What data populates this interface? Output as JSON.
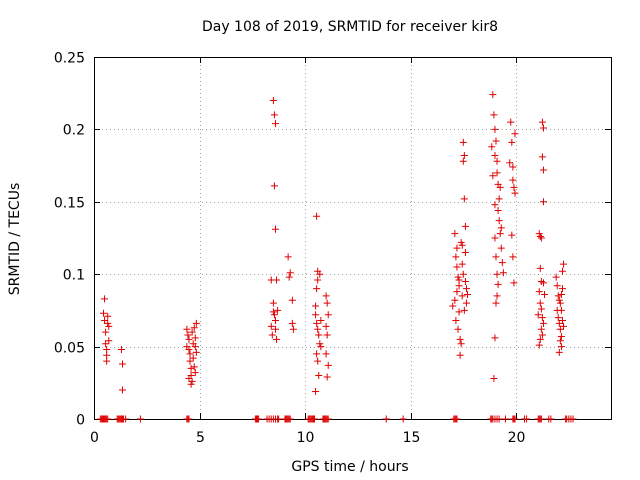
{
  "chart_data": {
    "type": "scatter",
    "title": "Day 108 of 2019, SRMTID for receiver kir8",
    "xlabel": "GPS time / hours",
    "ylabel": "SRMTID / TECUs",
    "xlim": [
      0,
      24.5
    ],
    "ylim": [
      0,
      0.25
    ],
    "xticks": [
      0,
      5,
      10,
      15,
      20
    ],
    "xtick_labels": [
      "0",
      "5",
      "10",
      "15",
      "20"
    ],
    "yticks": [
      0,
      0.05,
      0.1,
      0.15,
      0.2,
      0.25
    ],
    "ytick_labels": [
      "0",
      "0.05",
      "0.1",
      "0.15",
      "0.2",
      "0.25"
    ],
    "grid": true,
    "marker": "+",
    "color": "#e00000",
    "series": [
      {
        "name": "SRMTID",
        "points": [
          [
            0.5,
            0.083
          ],
          [
            0.5,
            0.068
          ],
          [
            0.55,
            0.06
          ],
          [
            0.55,
            0.052
          ],
          [
            0.6,
            0.048
          ],
          [
            0.6,
            0.044
          ],
          [
            0.65,
            0.071
          ],
          [
            0.65,
            0.066
          ],
          [
            0.7,
            0.064
          ],
          [
            0.7,
            0.054
          ],
          [
            0.45,
            0.073
          ],
          [
            0.6,
            0.04
          ],
          [
            1.3,
            0.048
          ],
          [
            1.35,
            0.038
          ],
          [
            1.35,
            0.02
          ],
          [
            4.4,
            0.062
          ],
          [
            4.45,
            0.058
          ],
          [
            4.5,
            0.055
          ],
          [
            4.5,
            0.048
          ],
          [
            4.55,
            0.045
          ],
          [
            4.55,
            0.04
          ],
          [
            4.6,
            0.035
          ],
          [
            4.6,
            0.03
          ],
          [
            4.65,
            0.026
          ],
          [
            4.65,
            0.06
          ],
          [
            4.7,
            0.052
          ],
          [
            4.7,
            0.042
          ],
          [
            4.75,
            0.063
          ],
          [
            4.75,
            0.036
          ],
          [
            4.8,
            0.056
          ],
          [
            4.8,
            0.05
          ],
          [
            4.85,
            0.066
          ],
          [
            4.85,
            0.046
          ],
          [
            4.5,
            0.028
          ],
          [
            4.6,
            0.024
          ],
          [
            4.8,
            0.032
          ],
          [
            4.4,
            0.05
          ],
          [
            8.5,
            0.22
          ],
          [
            8.55,
            0.21
          ],
          [
            8.6,
            0.204
          ],
          [
            8.55,
            0.161
          ],
          [
            8.6,
            0.131
          ],
          [
            8.4,
            0.096
          ],
          [
            8.5,
            0.08
          ],
          [
            8.5,
            0.074
          ],
          [
            8.55,
            0.072
          ],
          [
            8.6,
            0.068
          ],
          [
            8.6,
            0.062
          ],
          [
            8.65,
            0.055
          ],
          [
            8.4,
            0.064
          ],
          [
            8.45,
            0.058
          ],
          [
            8.65,
            0.096
          ],
          [
            8.7,
            0.075
          ],
          [
            9.2,
            0.112
          ],
          [
            9.25,
            0.098
          ],
          [
            9.3,
            0.101
          ],
          [
            9.4,
            0.082
          ],
          [
            9.4,
            0.066
          ],
          [
            9.45,
            0.062
          ],
          [
            10.55,
            0.14
          ],
          [
            10.6,
            0.102
          ],
          [
            10.6,
            0.096
          ],
          [
            10.55,
            0.09
          ],
          [
            10.5,
            0.078
          ],
          [
            10.5,
            0.072
          ],
          [
            10.55,
            0.066
          ],
          [
            10.6,
            0.062
          ],
          [
            10.65,
            0.058
          ],
          [
            10.7,
            0.052
          ],
          [
            10.75,
            0.05
          ],
          [
            10.55,
            0.045
          ],
          [
            10.6,
            0.04
          ],
          [
            10.5,
            0.019
          ],
          [
            10.7,
            0.1
          ],
          [
            10.75,
            0.068
          ],
          [
            10.65,
            0.03
          ],
          [
            11.0,
            0.085
          ],
          [
            11.05,
            0.08
          ],
          [
            11.1,
            0.072
          ],
          [
            11.0,
            0.064
          ],
          [
            11.05,
            0.058
          ],
          [
            11.0,
            0.045
          ],
          [
            11.1,
            0.037
          ],
          [
            11.05,
            0.029
          ],
          [
            17.1,
            0.128
          ],
          [
            17.15,
            0.112
          ],
          [
            17.2,
            0.105
          ],
          [
            17.25,
            0.098
          ],
          [
            17.3,
            0.092
          ],
          [
            17.2,
            0.088
          ],
          [
            17.1,
            0.082
          ],
          [
            17.3,
            0.074
          ],
          [
            17.15,
            0.068
          ],
          [
            17.25,
            0.062
          ],
          [
            17.35,
            0.055
          ],
          [
            17.4,
            0.052
          ],
          [
            17.35,
            0.044
          ],
          [
            17.4,
            0.122
          ],
          [
            17.45,
            0.12
          ],
          [
            17.5,
            0.191
          ],
          [
            17.55,
            0.182
          ],
          [
            17.5,
            0.178
          ],
          [
            17.55,
            0.152
          ],
          [
            17.6,
            0.133
          ],
          [
            17.6,
            0.115
          ],
          [
            17.45,
            0.107
          ],
          [
            17.5,
            0.1
          ],
          [
            17.6,
            0.095
          ],
          [
            17.65,
            0.09
          ],
          [
            17.7,
            0.086
          ],
          [
            17.65,
            0.08
          ],
          [
            17.55,
            0.075
          ],
          [
            17.45,
            0.085
          ],
          [
            17.3,
            0.096
          ],
          [
            17.0,
            0.078
          ],
          [
            17.2,
            0.118
          ],
          [
            18.9,
            0.224
          ],
          [
            18.95,
            0.21
          ],
          [
            19.0,
            0.2
          ],
          [
            19.05,
            0.192
          ],
          [
            19.0,
            0.182
          ],
          [
            19.1,
            0.178
          ],
          [
            19.1,
            0.17
          ],
          [
            19.15,
            0.162
          ],
          [
            19.2,
            0.152
          ],
          [
            19.15,
            0.144
          ],
          [
            19.2,
            0.137
          ],
          [
            19.3,
            0.132
          ],
          [
            19.25,
            0.128
          ],
          [
            19.0,
            0.125
          ],
          [
            19.05,
            0.112
          ],
          [
            19.1,
            0.1
          ],
          [
            19.15,
            0.093
          ],
          [
            19.1,
            0.085
          ],
          [
            19.05,
            0.08
          ],
          [
            19.0,
            0.056
          ],
          [
            18.95,
            0.028
          ],
          [
            19.3,
            0.118
          ],
          [
            19.35,
            0.108
          ],
          [
            19.4,
            0.101
          ],
          [
            18.9,
            0.168
          ],
          [
            18.85,
            0.188
          ],
          [
            19.25,
            0.16
          ],
          [
            19.0,
            0.148
          ],
          [
            19.75,
            0.205
          ],
          [
            19.8,
            0.191
          ],
          [
            19.85,
            0.174
          ],
          [
            19.85,
            0.165
          ],
          [
            19.9,
            0.16
          ],
          [
            19.95,
            0.197
          ],
          [
            19.95,
            0.156
          ],
          [
            19.8,
            0.127
          ],
          [
            19.85,
            0.112
          ],
          [
            19.9,
            0.094
          ],
          [
            19.7,
            0.177
          ],
          [
            21.1,
            0.128
          ],
          [
            21.15,
            0.126
          ],
          [
            21.2,
            0.125
          ],
          [
            21.25,
            0.205
          ],
          [
            21.3,
            0.201
          ],
          [
            21.25,
            0.181
          ],
          [
            21.3,
            0.172
          ],
          [
            21.3,
            0.15
          ],
          [
            21.15,
            0.104
          ],
          [
            21.2,
            0.095
          ],
          [
            21.1,
            0.088
          ],
          [
            21.15,
            0.08
          ],
          [
            21.2,
            0.076
          ],
          [
            21.25,
            0.07
          ],
          [
            21.3,
            0.066
          ],
          [
            21.2,
            0.062
          ],
          [
            21.25,
            0.058
          ],
          [
            21.15,
            0.055
          ],
          [
            21.1,
            0.051
          ],
          [
            21.3,
            0.094
          ],
          [
            21.35,
            0.086
          ],
          [
            21.05,
            0.072
          ],
          [
            21.9,
            0.098
          ],
          [
            21.95,
            0.092
          ],
          [
            22.0,
            0.085
          ],
          [
            22.05,
            0.082
          ],
          [
            22.1,
            0.08
          ],
          [
            22.15,
            0.075
          ],
          [
            22.0,
            0.07
          ],
          [
            22.05,
            0.066
          ],
          [
            22.1,
            0.062
          ],
          [
            22.15,
            0.057
          ],
          [
            22.1,
            0.054
          ],
          [
            22.15,
            0.05
          ],
          [
            22.05,
            0.046
          ],
          [
            22.2,
            0.102
          ],
          [
            22.25,
            0.107
          ],
          [
            22.2,
            0.09
          ],
          [
            22.2,
            0.068
          ],
          [
            22.25,
            0.064
          ],
          [
            21.95,
            0.075
          ],
          [
            22.15,
            0.086
          ]
        ],
        "zero_points_x": [
          0.3,
          0.35,
          0.4,
          0.45,
          0.5,
          0.55,
          0.6,
          0.65,
          1.1,
          1.15,
          1.2,
          1.25,
          1.3,
          1.35,
          1.4,
          1.5,
          2.2,
          4.4,
          4.45,
          4.5,
          7.65,
          7.7,
          7.75,
          7.8,
          8.2,
          8.3,
          8.4,
          8.5,
          8.6,
          8.7,
          8.75,
          9.05,
          9.1,
          9.15,
          9.2,
          9.25,
          9.3,
          10.15,
          10.2,
          10.25,
          10.3,
          10.35,
          10.4,
          10.45,
          10.85,
          10.9,
          10.95,
          11.0,
          11.05,
          11.1,
          13.85,
          14.65,
          17.05,
          17.1,
          17.15,
          17.2,
          18.8,
          18.85,
          18.9,
          19.0,
          19.1,
          19.2,
          19.5,
          19.85,
          19.9,
          19.95,
          20.4,
          20.5,
          21.05,
          21.1,
          21.15,
          21.2,
          21.55,
          21.65,
          22.35,
          22.4,
          22.5,
          22.6,
          22.7
        ]
      }
    ]
  }
}
